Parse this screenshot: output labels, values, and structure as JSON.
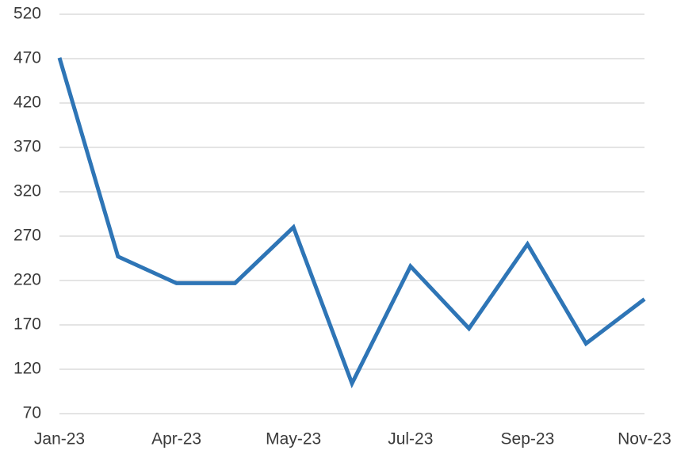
{
  "chart_data": {
    "type": "line",
    "categories": [
      "Jan-23",
      null,
      "Apr-23",
      null,
      "May-23",
      null,
      "Jul-23",
      null,
      "Sep-23",
      null,
      "Nov-23"
    ],
    "series": [
      {
        "color": "#2e75b6",
        "values": [
          471,
          247,
          217,
          217,
          280,
          104,
          236,
          166,
          261,
          149,
          199
        ]
      }
    ],
    "ylim": [
      70,
      520
    ],
    "yticks": [
      70,
      120,
      170,
      220,
      270,
      320,
      370,
      420,
      470,
      520
    ],
    "grid": true
  }
}
